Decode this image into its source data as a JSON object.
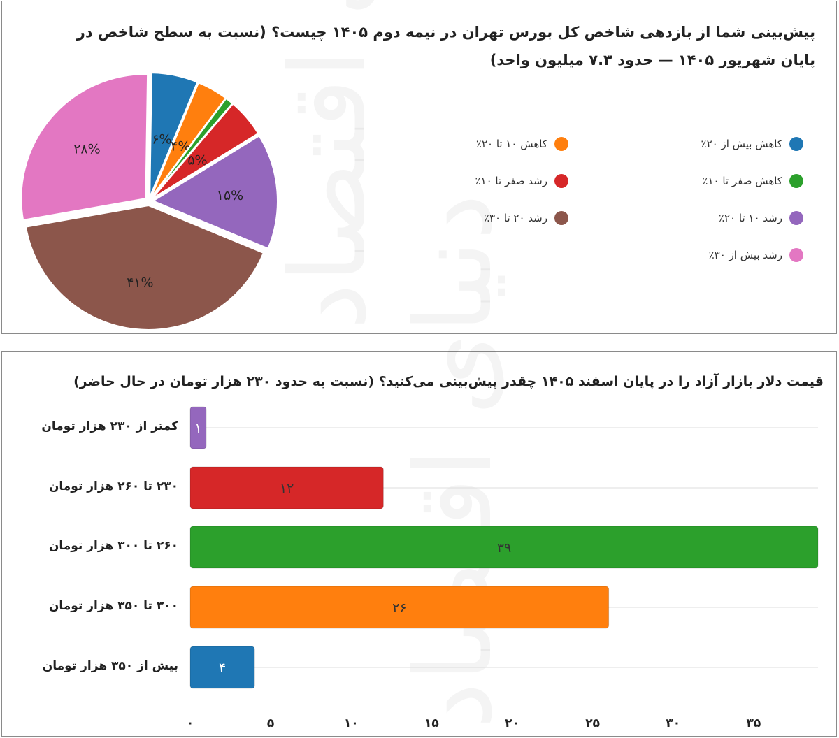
{
  "watermark_text": "دنیای اقتصاد",
  "chart_data": [
    {
      "type": "pie",
      "title": "پیش‌بینی شما از بازدهی شاخص کل بورس تهران در نیمه دوم ۱۴۰۵ چیست؟ (نسبت به سطح شاخص در پایان شهریور ۱۴۰۵ — حدود ۷.۳ میلیون واحد)",
      "legend_position": "right",
      "slices": [
        {
          "name": "کاهش بیش از ۲۰٪",
          "value": 6,
          "label": "۶%",
          "color": "#1f77b4"
        },
        {
          "name": "کاهش ۱۰ تا ۲۰٪",
          "value": 4,
          "label": "۴%",
          "color": "#ff7f0e"
        },
        {
          "name": "کاهش صفر تا ۱۰٪",
          "value": 1,
          "label": "",
          "color": "#2ca02c"
        },
        {
          "name": "رشد صفر تا ۱۰٪",
          "value": 5,
          "label": "۵%",
          "color": "#d62728"
        },
        {
          "name": "رشد ۱۰ تا ۲۰٪",
          "value": 15,
          "label": "۱۵%",
          "color": "#9467bd"
        },
        {
          "name": "رشد ۲۰ تا ۳۰٪",
          "value": 41,
          "label": "۴۱%",
          "color": "#8c564b"
        },
        {
          "name": "رشد بیش از ۳۰٪",
          "value": 28,
          "label": "۲۸%",
          "color": "#e377c2"
        }
      ]
    },
    {
      "type": "bar",
      "orientation": "horizontal",
      "title": "قیمت دلار بازار آزاد را در پایان اسفند ۱۴۰۵ چقدر پیش‌بینی می‌کنید؟ (نسبت به حدود ۲۳۰ هزار تومان در حال حاضر)",
      "categories": [
        "کمتر از ۲۳۰ هزار تومان",
        "۲۳۰ تا ۲۶۰ هزار تومان",
        "۲۶۰ تا ۳۰۰ هزار تومان",
        "۳۰۰ تا ۳۵۰ هزار تومان",
        "بیش از ۳۵۰ هزار تومان"
      ],
      "values": [
        1,
        12,
        39,
        26,
        4
      ],
      "value_labels": [
        "۱",
        "۱۲",
        "۳۹",
        "۲۶",
        "۴"
      ],
      "colors": [
        "#9467bd",
        "#d62728",
        "#2ca02c",
        "#ff7f0e",
        "#1f77b4"
      ],
      "xlim": [
        0,
        39
      ],
      "xticks": [
        0,
        5,
        10,
        15,
        20,
        25,
        30,
        35
      ],
      "xtick_labels": [
        "۰",
        "۵",
        "۱۰",
        "۱۵",
        "۲۰",
        "۲۵",
        "۳۰",
        "۳۵"
      ],
      "grid": true
    }
  ]
}
